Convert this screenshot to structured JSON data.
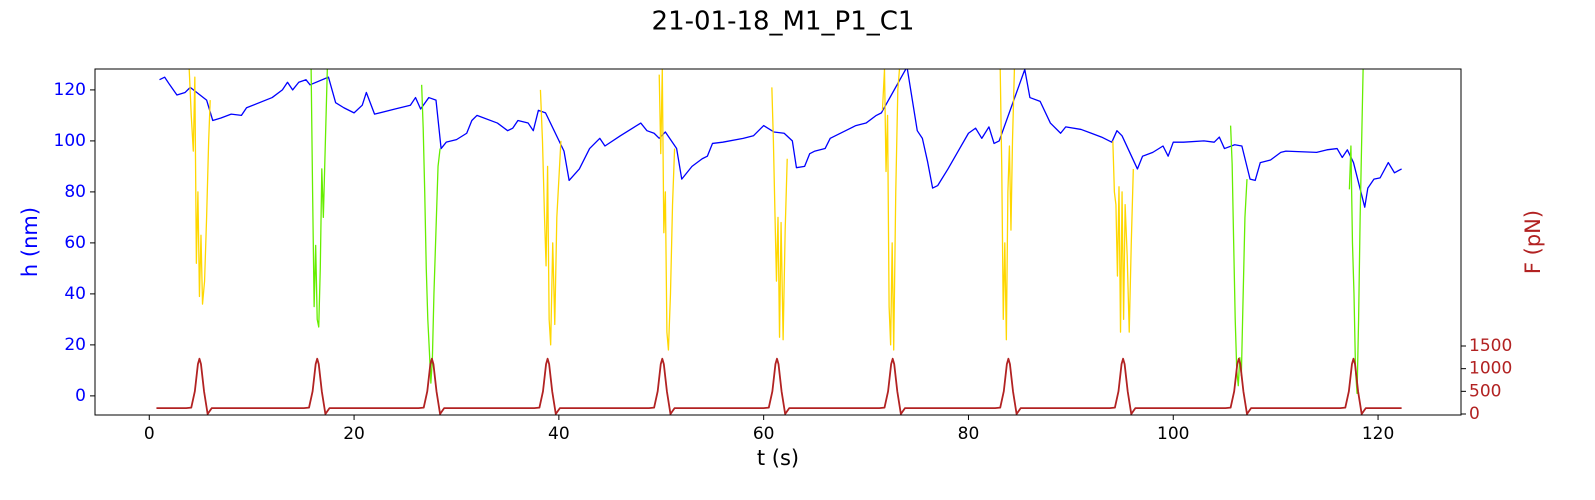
{
  "chart_data": {
    "type": "line",
    "title": "21-01-18_M1_P1_C1",
    "xlabel": "t (s)",
    "ylabel": "h (nm)",
    "y2label": "F (pN)",
    "ylabel_color": "#0000ff",
    "y2label_color": "#b22222",
    "xlim": [
      -5.3,
      128.1
    ],
    "xticks": [
      0,
      20,
      40,
      60,
      80,
      100,
      120
    ],
    "ylim": [
      -7.5,
      128.2
    ],
    "yticks": [
      0,
      20,
      40,
      60,
      80,
      100,
      120
    ],
    "y2lim": [
      -22,
      7610
    ],
    "y2ticks": [
      0,
      500,
      1000,
      1500
    ],
    "series": [
      {
        "color": "#0000ff",
        "axis": "y",
        "x": [
          1,
          1.5,
          2,
          2.7,
          3.5,
          4,
          5.6,
          6.2,
          7,
          8,
          9,
          9.5,
          12,
          13,
          13.5,
          14,
          14.6,
          15.3,
          15.7,
          17.5,
          18.2,
          19,
          20,
          20.8,
          21.2,
          22,
          24,
          25.5,
          26,
          26.5,
          27.3,
          28,
          28.5,
          29,
          30,
          31,
          31.5,
          32,
          34,
          35,
          35.5,
          36,
          37,
          37.5,
          38,
          38.7,
          40.5,
          41,
          42,
          43,
          44,
          44.5,
          46,
          47,
          48,
          48.6,
          49.3,
          49.8,
          50.4,
          51.5,
          52,
          53,
          54,
          54.5,
          55,
          56,
          58,
          59,
          60,
          61,
          62,
          62.8,
          63.2,
          64,
          64.5,
          65,
          66,
          66.5,
          68,
          69,
          70,
          71,
          71.5,
          74,
          75,
          75.5,
          76,
          76.5,
          77,
          78,
          79,
          80,
          80.7,
          81.3,
          82,
          82.5,
          83,
          85.5,
          86,
          87,
          88,
          89,
          89.5,
          91,
          92,
          93,
          94,
          94.5,
          95,
          96.5,
          97,
          98,
          99,
          99.5,
          100,
          101,
          103,
          104,
          104.5,
          105,
          106,
          106.7,
          107.5,
          108,
          108.5,
          109.5,
          110.5,
          111,
          114,
          115,
          116,
          116.5,
          117,
          117.6,
          118.7,
          119,
          119.6,
          120.2,
          121,
          121.6,
          122.3
        ],
        "values": [
          124,
          125,
          122,
          118,
          119,
          121,
          116,
          108,
          109,
          110.5,
          110,
          113,
          117,
          120,
          123,
          120,
          123,
          124,
          122,
          125,
          115,
          113,
          111,
          114,
          119,
          110.5,
          112.5,
          114,
          117,
          112.5,
          117,
          116,
          97,
          99.5,
          100.5,
          103,
          108,
          110,
          107,
          104,
          105,
          108,
          107,
          104,
          112,
          111,
          96,
          84.5,
          89,
          97,
          101,
          98,
          102,
          104.5,
          107,
          104,
          103,
          101,
          103.5,
          97,
          85,
          90,
          93,
          94,
          99,
          99.5,
          101,
          102,
          106,
          103.5,
          103,
          100,
          89.5,
          90,
          95,
          96,
          97,
          101,
          104,
          106,
          107,
          110,
          111,
          129,
          104,
          101,
          92,
          81.5,
          82.5,
          89,
          96,
          103,
          105,
          101,
          105.5,
          99,
          100,
          128,
          117,
          115.5,
          107,
          103,
          105.5,
          104.5,
          103,
          101.5,
          99.5,
          104,
          102,
          89,
          94,
          95.5,
          98,
          94,
          99.5,
          99.5,
          100,
          99.5,
          101.5,
          97,
          98.5,
          98,
          85,
          84.5,
          91.5,
          92.5,
          95.5,
          96,
          95.5,
          96.5,
          97,
          93.5,
          96.5,
          91.5,
          74,
          81.5,
          85,
          85.5,
          91.5,
          87.5,
          89
        ]
      },
      {
        "color": "#ffd700",
        "axis": "y",
        "x": [
          3.9,
          4.1,
          4.3,
          4.45,
          4.6,
          4.75,
          4.9,
          5.05,
          5.2,
          5.4,
          5.6,
          5.8,
          5.95,
          20,
          38.2,
          38.4,
          38.6,
          38.75,
          38.9,
          39.05,
          39.2,
          39.4,
          39.6,
          39.8,
          40,
          40.2,
          45,
          49.8,
          49.95,
          50.1,
          50.25,
          50.4,
          50.55,
          50.7,
          50.9,
          51.1,
          51.3,
          55,
          60.8,
          60.95,
          61.1,
          61.25,
          61.4,
          61.55,
          61.7,
          61.9,
          62.1,
          62.3,
          66,
          71.6,
          71.8,
          71.95,
          72.1,
          72.25,
          72.4,
          72.55,
          72.7,
          72.9,
          73.1,
          73.3,
          78,
          83.1,
          83.25,
          83.4,
          83.55,
          83.7,
          83.85,
          84,
          84.15,
          84.3,
          84.5,
          90,
          94.1,
          94.25,
          94.4,
          94.55,
          94.7,
          94.85,
          95,
          95.15,
          95.3,
          95.5,
          95.7,
          95.9,
          96.1
        ],
        "values": [
          128,
          110,
          96,
          125,
          52,
          80,
          39,
          63,
          36,
          45,
          70,
          100,
          116,
          null,
          120,
          100,
          70,
          51,
          90,
          30,
          20,
          60,
          28,
          70,
          85,
          100,
          null,
          126,
          95,
          128,
          64,
          80,
          25,
          18,
          40,
          75,
          97,
          null,
          121,
          100,
          72,
          45,
          70,
          23,
          68,
          22,
          65,
          93,
          null,
          112,
          128,
          88,
          110,
          35,
          20,
          60,
          18,
          80,
          120,
          130,
          null,
          128,
          90,
          30,
          60,
          22,
          80,
          98,
          65,
          100,
          130,
          null,
          100,
          80,
          75,
          47,
          82,
          25,
          80,
          30,
          75,
          55,
          25,
          60,
          89
        ]
      },
      {
        "color": "#66ee00",
        "axis": "y",
        "x": [
          15.8,
          15.95,
          16.1,
          16.25,
          16.4,
          16.55,
          16.7,
          16.85,
          17,
          17.2,
          17.4,
          22,
          26.6,
          26.75,
          26.9,
          27.05,
          27.2,
          27.35,
          27.5,
          27.65,
          27.8,
          28,
          28.2,
          28.4,
          60,
          105.6,
          105.75,
          105.9,
          106.05,
          106.2,
          106.35,
          106.5,
          106.65,
          106.8,
          107,
          107.2,
          112,
          117.2,
          117.35,
          117.5,
          117.65,
          117.8,
          117.95,
          118.1,
          118.25,
          118.4,
          118.55
        ],
        "values": [
          130,
          80,
          35,
          59,
          30,
          27,
          50,
          89,
          70,
          100,
          130,
          null,
          122,
          105,
          80,
          50,
          30,
          18,
          5,
          15,
          40,
          65,
          90,
          97,
          null,
          106,
          91,
          60,
          30,
          10,
          4,
          15,
          8,
          35,
          70,
          85,
          null,
          81,
          98,
          60,
          40,
          10,
          1,
          30,
          70,
          100,
          130
        ]
      },
      {
        "color": "#b22222",
        "axis": "y2",
        "x": [
          0.7,
          3.6,
          4.1,
          4.45,
          4.75,
          4.9,
          5.05,
          5.35,
          5.7,
          6.1,
          15.1,
          15.6,
          15.95,
          16.25,
          16.4,
          16.55,
          16.85,
          17.2,
          17.6,
          26.3,
          26.8,
          27.15,
          27.45,
          27.6,
          27.75,
          28.05,
          28.4,
          28.8,
          37.6,
          38.1,
          38.45,
          38.75,
          38.9,
          39.05,
          39.35,
          39.7,
          40.1,
          48.8,
          49.3,
          49.65,
          49.95,
          50.1,
          50.25,
          50.55,
          50.9,
          51.3,
          60,
          60.5,
          60.85,
          61.15,
          61.3,
          61.45,
          61.75,
          62.1,
          62.5,
          71.3,
          71.8,
          72.15,
          72.45,
          72.6,
          72.75,
          73.05,
          73.4,
          73.8,
          82.6,
          83.1,
          83.45,
          83.75,
          83.9,
          84.05,
          84.35,
          84.7,
          85.1,
          93.8,
          94.3,
          94.65,
          94.95,
          95.1,
          95.25,
          95.55,
          95.9,
          96.3,
          105.1,
          105.6,
          105.95,
          106.25,
          106.4,
          106.55,
          106.85,
          107.2,
          107.6,
          116.3,
          116.8,
          117.15,
          117.45,
          117.6,
          117.75,
          118.05,
          118.4,
          118.8,
          122.3
        ],
        "values": [
          130,
          130,
          140,
          500,
          1100,
          1220,
          1100,
          500,
          0,
          130,
          130,
          140,
          500,
          1100,
          1220,
          1100,
          500,
          0,
          130,
          130,
          140,
          500,
          1100,
          1220,
          1100,
          500,
          0,
          130,
          130,
          140,
          500,
          1100,
          1220,
          1100,
          500,
          0,
          130,
          130,
          140,
          500,
          1100,
          1220,
          1100,
          500,
          0,
          130,
          130,
          140,
          500,
          1100,
          1220,
          1100,
          500,
          0,
          130,
          130,
          140,
          500,
          1100,
          1220,
          1100,
          500,
          0,
          130,
          130,
          140,
          500,
          1100,
          1220,
          1100,
          500,
          0,
          130,
          130,
          140,
          500,
          1100,
          1220,
          1100,
          500,
          0,
          130,
          130,
          140,
          500,
          1100,
          1220,
          1100,
          500,
          0,
          130,
          130,
          140,
          500,
          1100,
          1220,
          1100,
          500,
          0,
          130,
          130
        ]
      }
    ]
  }
}
